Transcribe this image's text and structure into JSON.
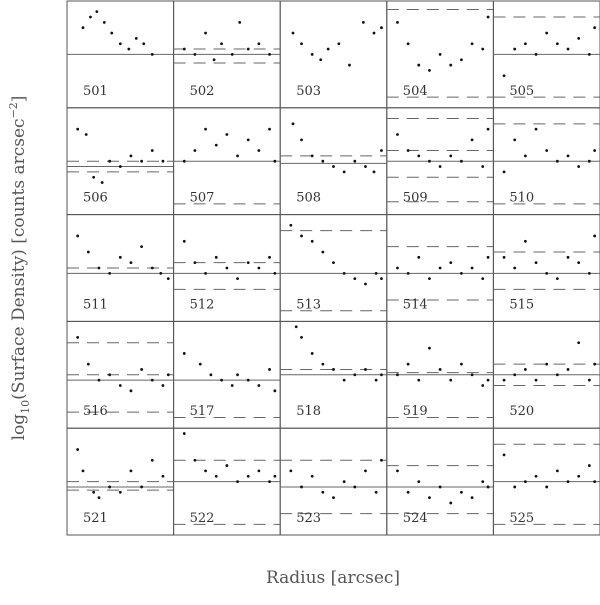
{
  "figure": {
    "xlabel": "Radius [arcsec]",
    "ylabel": {
      "prefix": "log",
      "sub": "10",
      "main": "(Surface Density) [counts arcsec",
      "sup": "−2",
      "end": "]"
    }
  },
  "chart_data": [
    {
      "type": "scatter",
      "title": "501",
      "xlim": [
        0,
        1
      ],
      "ylim": [
        0,
        1
      ],
      "x": [
        0.15,
        0.22,
        0.28,
        0.35,
        0.42,
        0.5,
        0.58,
        0.65,
        0.72,
        0.8
      ],
      "y": [
        0.75,
        0.85,
        0.9,
        0.8,
        0.7,
        0.6,
        0.55,
        0.65,
        0.6,
        0.5
      ],
      "solid": [
        0.5
      ]
    },
    {
      "type": "scatter",
      "title": "502",
      "xlim": [
        0,
        1
      ],
      "ylim": [
        0,
        1
      ],
      "x": [
        0.1,
        0.2,
        0.3,
        0.38,
        0.45,
        0.55,
        0.62,
        0.7,
        0.8,
        0.9
      ],
      "y": [
        0.55,
        0.5,
        0.7,
        0.45,
        0.6,
        0.5,
        0.8,
        0.55,
        0.6,
        0.5
      ],
      "solid": [
        0.5
      ],
      "dashed": [
        0.55,
        0.42
      ]
    },
    {
      "type": "scatter",
      "title": "503",
      "xlim": [
        0,
        1
      ],
      "ylim": [
        0,
        1
      ],
      "x": [
        0.12,
        0.2,
        0.3,
        0.38,
        0.45,
        0.55,
        0.65,
        0.78,
        0.88,
        0.95
      ],
      "y": [
        0.7,
        0.6,
        0.5,
        0.45,
        0.55,
        0.6,
        0.4,
        0.8,
        0.7,
        0.75
      ]
    },
    {
      "type": "scatter",
      "title": "504",
      "xlim": [
        0,
        1
      ],
      "ylim": [
        0,
        1
      ],
      "x": [
        0.1,
        0.2,
        0.3,
        0.4,
        0.5,
        0.6,
        0.7,
        0.8,
        0.9,
        0.95
      ],
      "y": [
        0.8,
        0.6,
        0.4,
        0.35,
        0.5,
        0.4,
        0.45,
        0.6,
        0.55,
        0.85
      ],
      "dashed": [
        0.92,
        0.1
      ]
    },
    {
      "type": "scatter",
      "title": "505",
      "xlim": [
        0,
        1
      ],
      "ylim": [
        0,
        1
      ],
      "x": [
        0.1,
        0.2,
        0.3,
        0.4,
        0.5,
        0.6,
        0.7,
        0.8,
        0.9,
        0.95
      ],
      "y": [
        0.3,
        0.55,
        0.6,
        0.5,
        0.7,
        0.6,
        0.55,
        0.65,
        0.5,
        0.75
      ],
      "solid": [
        0.5
      ],
      "dashed": [
        0.85,
        0.1
      ]
    },
    {
      "type": "scatter",
      "title": "506",
      "xlim": [
        0,
        1
      ],
      "ylim": [
        0,
        1
      ],
      "x": [
        0.1,
        0.18,
        0.25,
        0.33,
        0.4,
        0.5,
        0.6,
        0.7,
        0.8,
        0.9
      ],
      "y": [
        0.8,
        0.75,
        0.35,
        0.3,
        0.5,
        0.45,
        0.55,
        0.5,
        0.6,
        0.5
      ],
      "solid": [
        0.45
      ],
      "dashed": [
        0.5,
        0.4
      ]
    },
    {
      "type": "scatter",
      "title": "507",
      "xlim": [
        0,
        1
      ],
      "ylim": [
        0,
        1
      ],
      "x": [
        0.1,
        0.2,
        0.3,
        0.4,
        0.5,
        0.6,
        0.7,
        0.8,
        0.9,
        0.95
      ],
      "y": [
        0.5,
        0.6,
        0.8,
        0.65,
        0.75,
        0.55,
        0.7,
        0.6,
        0.8,
        0.5
      ],
      "solid": [
        0.5
      ],
      "dashed": [
        0.1
      ]
    },
    {
      "type": "scatter",
      "title": "508",
      "xlim": [
        0,
        1
      ],
      "ylim": [
        0,
        1
      ],
      "x": [
        0.12,
        0.2,
        0.3,
        0.4,
        0.5,
        0.6,
        0.7,
        0.8,
        0.88,
        0.95
      ],
      "y": [
        0.85,
        0.7,
        0.55,
        0.5,
        0.45,
        0.4,
        0.5,
        0.45,
        0.4,
        0.6
      ],
      "solid": [
        0.48
      ],
      "dashed": [
        0.55
      ]
    },
    {
      "type": "scatter",
      "title": "509",
      "xlim": [
        0,
        1
      ],
      "ylim": [
        0,
        1
      ],
      "x": [
        0.1,
        0.2,
        0.3,
        0.4,
        0.5,
        0.6,
        0.7,
        0.8,
        0.9,
        0.95
      ],
      "y": [
        0.75,
        0.6,
        0.55,
        0.5,
        0.45,
        0.55,
        0.5,
        0.7,
        0.45,
        0.8
      ],
      "solid": [
        0.5
      ],
      "dashed": [
        0.9,
        0.6,
        0.35,
        0.12
      ]
    },
    {
      "type": "scatter",
      "title": "510",
      "xlim": [
        0,
        1
      ],
      "ylim": [
        0,
        1
      ],
      "x": [
        0.1,
        0.2,
        0.3,
        0.4,
        0.5,
        0.6,
        0.7,
        0.8,
        0.9,
        0.95
      ],
      "y": [
        0.4,
        0.7,
        0.55,
        0.8,
        0.6,
        0.5,
        0.55,
        0.45,
        0.5,
        0.6
      ],
      "solid": [
        0.5
      ],
      "dashed": [
        0.85,
        0.1
      ]
    },
    {
      "type": "scatter",
      "title": "511",
      "xlim": [
        0,
        1
      ],
      "ylim": [
        0,
        1
      ],
      "x": [
        0.1,
        0.2,
        0.3,
        0.4,
        0.5,
        0.6,
        0.7,
        0.8,
        0.88,
        0.95
      ],
      "y": [
        0.8,
        0.65,
        0.5,
        0.45,
        0.6,
        0.55,
        0.7,
        0.5,
        0.45,
        0.4
      ],
      "solid": [
        0.45
      ],
      "dashed": [
        0.5
      ]
    },
    {
      "type": "scatter",
      "title": "512",
      "xlim": [
        0,
        1
      ],
      "ylim": [
        0,
        1
      ],
      "x": [
        0.1,
        0.2,
        0.3,
        0.4,
        0.5,
        0.6,
        0.7,
        0.8,
        0.9,
        0.95
      ],
      "y": [
        0.75,
        0.55,
        0.45,
        0.6,
        0.5,
        0.4,
        0.55,
        0.5,
        0.6,
        0.45
      ],
      "solid": [
        0.45
      ],
      "dashed": [
        0.55,
        0.3
      ]
    },
    {
      "type": "scatter",
      "title": "513",
      "xlim": [
        0,
        1
      ],
      "ylim": [
        0,
        1
      ],
      "x": [
        0.1,
        0.2,
        0.3,
        0.4,
        0.5,
        0.6,
        0.7,
        0.8,
        0.9,
        0.95
      ],
      "y": [
        0.9,
        0.8,
        0.75,
        0.65,
        0.55,
        0.45,
        0.4,
        0.35,
        0.45,
        0.4
      ],
      "solid": [
        0.45
      ],
      "dashed": [
        0.85,
        0.1
      ]
    },
    {
      "type": "scatter",
      "title": "514",
      "xlim": [
        0,
        1
      ],
      "ylim": [
        0,
        1
      ],
      "x": [
        0.1,
        0.2,
        0.3,
        0.4,
        0.5,
        0.6,
        0.7,
        0.8,
        0.9,
        0.95
      ],
      "y": [
        0.5,
        0.45,
        0.6,
        0.4,
        0.5,
        0.55,
        0.45,
        0.5,
        0.4,
        0.6
      ],
      "solid": [
        0.45
      ],
      "dashed": [
        0.7,
        0.2
      ]
    },
    {
      "type": "scatter",
      "title": "515",
      "xlim": [
        0,
        1
      ],
      "ylim": [
        0,
        1
      ],
      "x": [
        0.1,
        0.2,
        0.3,
        0.4,
        0.5,
        0.6,
        0.7,
        0.8,
        0.9,
        0.95
      ],
      "y": [
        0.6,
        0.5,
        0.75,
        0.55,
        0.45,
        0.4,
        0.6,
        0.55,
        0.45,
        0.8
      ],
      "solid": [
        0.45
      ],
      "dashed": [
        0.65,
        0.3
      ]
    },
    {
      "type": "scatter",
      "title": "516",
      "xlim": [
        0,
        1
      ],
      "ylim": [
        0,
        1
      ],
      "x": [
        0.1,
        0.2,
        0.3,
        0.4,
        0.5,
        0.6,
        0.7,
        0.8,
        0.9,
        0.95
      ],
      "y": [
        0.85,
        0.6,
        0.45,
        0.5,
        0.4,
        0.35,
        0.55,
        0.45,
        0.4,
        0.5
      ],
      "solid": [
        0.45
      ],
      "dashed": [
        0.8,
        0.5,
        0.15
      ]
    },
    {
      "type": "scatter",
      "title": "517",
      "xlim": [
        0,
        1
      ],
      "ylim": [
        0,
        1
      ],
      "x": [
        0.1,
        0.25,
        0.35,
        0.45,
        0.55,
        0.6,
        0.7,
        0.8,
        0.9,
        0.95
      ],
      "y": [
        0.7,
        0.6,
        0.5,
        0.45,
        0.4,
        0.5,
        0.45,
        0.4,
        0.55,
        0.35
      ],
      "solid": [
        0.45
      ],
      "dashed": [
        0.1
      ]
    },
    {
      "type": "scatter",
      "title": "518",
      "xlim": [
        0,
        1
      ],
      "ylim": [
        0,
        1
      ],
      "x": [
        0.15,
        0.2,
        0.3,
        0.4,
        0.5,
        0.6,
        0.7,
        0.8,
        0.9,
        0.95
      ],
      "y": [
        0.95,
        0.85,
        0.7,
        0.6,
        0.55,
        0.45,
        0.5,
        0.55,
        0.45,
        0.5
      ],
      "solid": [
        0.5
      ],
      "dashed": [
        0.55
      ]
    },
    {
      "type": "scatter",
      "title": "519",
      "xlim": [
        0,
        1
      ],
      "ylim": [
        0,
        1
      ],
      "x": [
        0.1,
        0.2,
        0.3,
        0.4,
        0.5,
        0.6,
        0.7,
        0.8,
        0.9,
        0.95
      ],
      "y": [
        0.5,
        0.6,
        0.45,
        0.75,
        0.55,
        0.45,
        0.6,
        0.5,
        0.4,
        0.45
      ],
      "solid": [
        0.5
      ],
      "dashed": [
        0.52,
        0.1
      ]
    },
    {
      "type": "scatter",
      "title": "520",
      "xlim": [
        0,
        1
      ],
      "ylim": [
        0,
        1
      ],
      "x": [
        0.1,
        0.2,
        0.3,
        0.4,
        0.5,
        0.6,
        0.7,
        0.8,
        0.9,
        0.95
      ],
      "y": [
        0.45,
        0.5,
        0.55,
        0.45,
        0.6,
        0.5,
        0.55,
        0.8,
        0.45,
        0.6
      ],
      "solid": [
        0.5
      ],
      "dashed": [
        0.6,
        0.4
      ]
    },
    {
      "type": "scatter",
      "title": "521",
      "xlim": [
        0,
        1
      ],
      "ylim": [
        0,
        1
      ],
      "x": [
        0.1,
        0.15,
        0.25,
        0.3,
        0.4,
        0.5,
        0.6,
        0.7,
        0.8,
        0.9
      ],
      "y": [
        0.8,
        0.6,
        0.4,
        0.35,
        0.45,
        0.4,
        0.6,
        0.45,
        0.7,
        0.55
      ],
      "solid": [
        0.45
      ],
      "dashed": [
        0.5,
        0.42
      ]
    },
    {
      "type": "scatter",
      "title": "522",
      "xlim": [
        0,
        1
      ],
      "ylim": [
        0,
        1
      ],
      "x": [
        0.1,
        0.2,
        0.3,
        0.4,
        0.5,
        0.6,
        0.7,
        0.8,
        0.9,
        0.95
      ],
      "y": [
        0.95,
        0.7,
        0.6,
        0.55,
        0.65,
        0.5,
        0.55,
        0.6,
        0.5,
        0.55
      ],
      "solid": [
        0.5
      ],
      "dashed": [
        0.7,
        0.1
      ]
    },
    {
      "type": "scatter",
      "title": "523",
      "xlim": [
        0,
        1
      ],
      "ylim": [
        0,
        1
      ],
      "x": [
        0.1,
        0.2,
        0.3,
        0.4,
        0.5,
        0.6,
        0.7,
        0.8,
        0.9,
        0.95
      ],
      "y": [
        0.6,
        0.45,
        0.55,
        0.4,
        0.35,
        0.5,
        0.45,
        0.6,
        0.4,
        0.7
      ],
      "solid": [
        0.45
      ],
      "dashed": [
        0.7,
        0.2
      ]
    },
    {
      "type": "scatter",
      "title": "524",
      "xlim": [
        0,
        1
      ],
      "ylim": [
        0,
        1
      ],
      "x": [
        0.1,
        0.2,
        0.3,
        0.4,
        0.5,
        0.6,
        0.7,
        0.8,
        0.9,
        0.95
      ],
      "y": [
        0.6,
        0.4,
        0.5,
        0.35,
        0.45,
        0.3,
        0.4,
        0.35,
        0.5,
        0.45
      ],
      "solid": [
        0.45
      ],
      "dashed": [
        0.65,
        0.2
      ]
    },
    {
      "type": "scatter",
      "title": "525",
      "xlim": [
        0,
        1
      ],
      "ylim": [
        0,
        1
      ],
      "x": [
        0.1,
        0.2,
        0.3,
        0.4,
        0.5,
        0.6,
        0.7,
        0.8,
        0.9,
        0.95
      ],
      "y": [
        0.75,
        0.45,
        0.5,
        0.55,
        0.45,
        0.6,
        0.5,
        0.55,
        0.65,
        0.5
      ],
      "solid": [
        0.5
      ],
      "dashed": [
        0.85,
        0.1
      ]
    }
  ]
}
